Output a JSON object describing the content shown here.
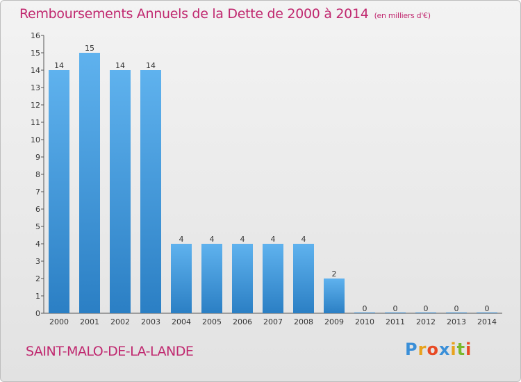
{
  "title": "Remboursements Annuels de la Dette de 2000 à 2014",
  "unit_note": "(en milliers d'€)",
  "place": "SAINT-MALO-DE-LA-LANDE",
  "logo": {
    "text": "Proxiti",
    "colors": [
      "#3a8fd8",
      "#e8a21c",
      "#e84a24",
      "#3a8fd8",
      "#e8a21c",
      "#7ab82c",
      "#e84a24"
    ]
  },
  "colors": {
    "title": "#c0286f",
    "bar_light": "#5fb2ee",
    "bar_dark": "#2b7fc4"
  },
  "chart_data": {
    "type": "bar",
    "categories": [
      "2000",
      "2001",
      "2002",
      "2003",
      "2004",
      "2005",
      "2006",
      "2007",
      "2008",
      "2009",
      "2010",
      "2011",
      "2012",
      "2013",
      "2014"
    ],
    "values": [
      14,
      15,
      14,
      14,
      4,
      4,
      4,
      4,
      4,
      2,
      0,
      0,
      0,
      0,
      0
    ],
    "ylim": [
      0,
      16
    ],
    "yticks": [
      0,
      1,
      2,
      3,
      4,
      5,
      6,
      7,
      8,
      9,
      10,
      11,
      12,
      13,
      14,
      15,
      16
    ],
    "grid": false,
    "data_labels": true
  }
}
